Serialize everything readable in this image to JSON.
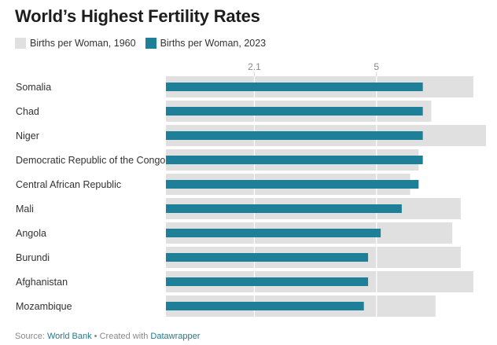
{
  "title": "World’s Highest Fertility Rates",
  "chart_data": {
    "type": "bar",
    "orientation": "horizontal",
    "categories": [
      "Somalia",
      "Chad",
      "Niger",
      "Democratic Republic of the Congo",
      "Central African Republic",
      "Mali",
      "Angola",
      "Burundi",
      "Afghanistan",
      "Mozambique"
    ],
    "series": [
      {
        "name": "Births per Woman, 1960",
        "color": "#e0e0e0",
        "values": [
          7.3,
          6.3,
          7.6,
          6.0,
          5.8,
          7.0,
          6.8,
          7.0,
          7.3,
          6.4
        ]
      },
      {
        "name": "Births per Woman, 2023",
        "color": "#1e7f99",
        "values": [
          6.1,
          6.1,
          6.1,
          6.1,
          6.0,
          5.6,
          5.1,
          4.8,
          4.8,
          4.7
        ]
      }
    ],
    "reference_lines": [
      2.1,
      5
    ],
    "reference_labels": [
      "2.1",
      "5"
    ],
    "xlim": [
      0,
      7.6
    ]
  },
  "footer": {
    "source_prefix": "Source: ",
    "source_name": "World Bank",
    "separator": " • Created with ",
    "tool": "Datawrapper"
  }
}
